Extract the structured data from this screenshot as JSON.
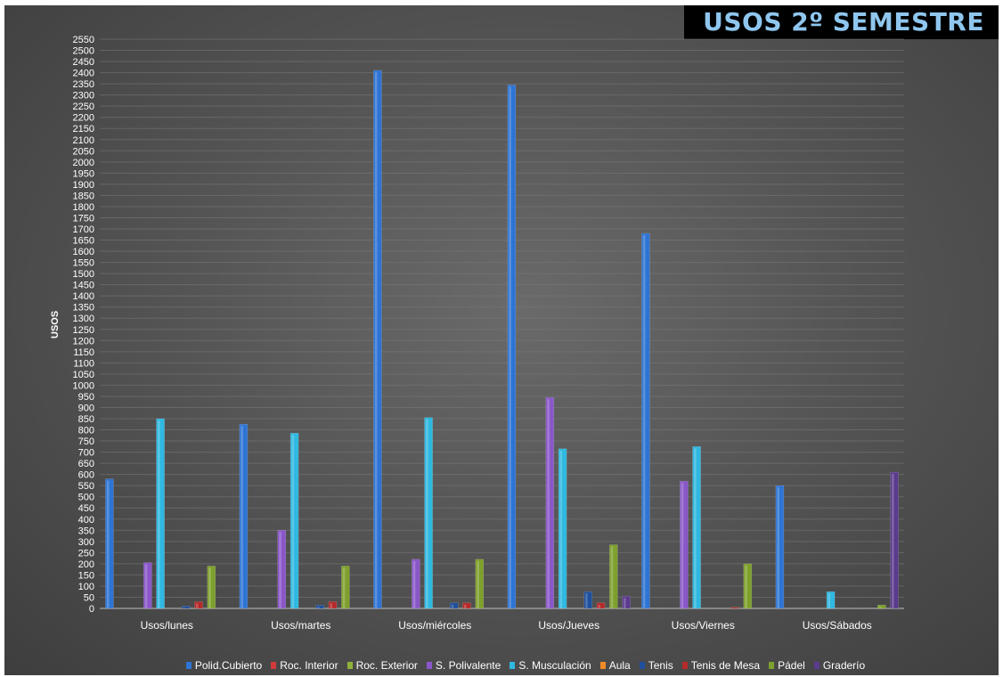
{
  "chart_data": {
    "type": "bar",
    "title": "USOS   2º SEMESTRE",
    "ylabel": "USOS",
    "xlabel": "",
    "ylim": [
      0,
      2550
    ],
    "ytick_step": 50,
    "grid": true,
    "legend_position": "bottom",
    "categories": [
      "Usos/lunes",
      "Usos/martes",
      "Usos/miércoles",
      "Usos/Jueves",
      "Usos/Viernes",
      "Usos/Sábados"
    ],
    "series": [
      {
        "name": "Polid.Cubierto",
        "color": "#2e74d4",
        "values": [
          580,
          825,
          2410,
          2345,
          1680,
          550
        ]
      },
      {
        "name": "Roc. Interior",
        "color": "#d23a3a",
        "values": [
          0,
          0,
          0,
          0,
          0,
          0
        ]
      },
      {
        "name": "Roc. Exterior",
        "color": "#8fb13a",
        "values": [
          0,
          0,
          0,
          0,
          0,
          0
        ]
      },
      {
        "name": "S. Polivalente",
        "color": "#8a57c8",
        "values": [
          205,
          350,
          220,
          945,
          570,
          0
        ]
      },
      {
        "name": "S. Musculación",
        "color": "#2fb8e0",
        "values": [
          850,
          785,
          855,
          715,
          725,
          75
        ]
      },
      {
        "name": "Aula",
        "color": "#f08a28",
        "values": [
          0,
          0,
          0,
          0,
          0,
          0
        ]
      },
      {
        "name": "Tenis",
        "color": "#1f4f9a",
        "values": [
          10,
          15,
          25,
          75,
          0,
          0
        ]
      },
      {
        "name": "Tenis de Mesa",
        "color": "#b52a2a",
        "values": [
          30,
          30,
          25,
          25,
          5,
          0
        ]
      },
      {
        "name": "Pádel",
        "color": "#7ea02c",
        "values": [
          190,
          190,
          220,
          285,
          200,
          15
        ]
      },
      {
        "name": "Graderío",
        "color": "#5b3b8e",
        "values": [
          0,
          0,
          0,
          55,
          0,
          610
        ]
      }
    ]
  }
}
